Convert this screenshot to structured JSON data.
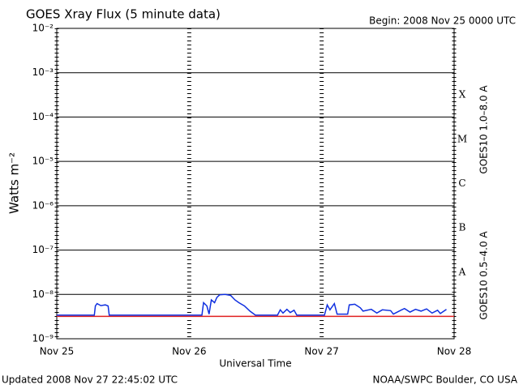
{
  "chart_data": {
    "type": "line",
    "title": "GOES Xray Flux (5 minute data)",
    "subtitle": "Begin:  2008 Nov 25 0000 UTC",
    "y_label": "Watts m⁻²",
    "x_label": "Universal Time",
    "footer_left": "Updated 2008 Nov 27 22:45:02 UTC",
    "footer_right": "NOAA/SWPC Boulder, CO USA",
    "log_scale": true,
    "grid": true,
    "xlim": [
      0,
      72
    ],
    "xticks": [
      {
        "value": 0,
        "label": "Nov 25"
      },
      {
        "value": 24,
        "label": "Nov 26"
      },
      {
        "value": 48,
        "label": "Nov 27"
      },
      {
        "value": 72,
        "label": "Nov 28"
      }
    ],
    "ylim": [
      1e-09,
      0.01
    ],
    "yticks": [
      {
        "value": 1e-09,
        "label": "10⁻⁹"
      },
      {
        "value": 1e-08,
        "label": "10⁻⁸"
      },
      {
        "value": 1e-07,
        "label": "10⁻⁷"
      },
      {
        "value": 1e-06,
        "label": "10⁻⁶"
      },
      {
        "value": 1e-05,
        "label": "10⁻⁵"
      },
      {
        "value": 0.0001,
        "label": "10⁻⁴"
      },
      {
        "value": 0.001,
        "label": "10⁻³"
      },
      {
        "value": 0.01,
        "label": "10⁻²"
      }
    ],
    "flare_classes": [
      "A",
      "B",
      "C",
      "M",
      "X"
    ],
    "series": [
      {
        "name": "GOES10 1.0–8.0 A",
        "color": "#e02020",
        "x": [
          0,
          72
        ],
        "values": [
          3.2e-09,
          3.2e-09
        ]
      },
      {
        "name": "GOES10 0.5–4.0 A",
        "color": "#1030e0",
        "x": [
          0,
          6.8,
          7.0,
          7.3,
          8,
          8.8,
          9.3,
          9.5,
          26.3,
          26.6,
          27.2,
          27.6,
          28,
          28.6,
          29,
          29.5,
          30.5,
          31.5,
          32.3,
          33,
          34,
          35,
          36,
          36.5,
          40,
          40.5,
          41,
          41.7,
          42.3,
          43,
          43.5,
          48.5,
          49,
          49.5,
          50.3,
          50.8,
          52.7,
          53,
          54,
          55,
          55.5,
          57,
          58,
          59,
          60.5,
          61,
          62.5,
          63,
          64,
          65,
          66,
          67,
          68,
          69,
          69.5,
          70.6
        ],
        "values": [
          3.4e-09,
          3.4e-09,
          5.5e-09,
          6.2e-09,
          5.6e-09,
          5.8e-09,
          5.5e-09,
          3.4e-09,
          3.4e-09,
          6.5e-09,
          5.5e-09,
          3.6e-09,
          7.5e-09,
          6.5e-09,
          8.5e-09,
          9.8e-09,
          1e-08,
          9.5e-09,
          7.5e-09,
          6.5e-09,
          5.5e-09,
          4.2e-09,
          3.4e-09,
          3.4e-09,
          3.4e-09,
          4.5e-09,
          3.8e-09,
          4.6e-09,
          3.9e-09,
          4.4e-09,
          3.4e-09,
          3.4e-09,
          5.8e-09,
          4.5e-09,
          6.2e-09,
          3.6e-09,
          3.6e-09,
          5.8e-09,
          6e-09,
          5e-09,
          4.2e-09,
          4.6e-09,
          3.8e-09,
          4.5e-09,
          4.3e-09,
          3.6e-09,
          4.5e-09,
          4.8e-09,
          4e-09,
          4.6e-09,
          4.2e-09,
          4.7e-09,
          3.8e-09,
          4.4e-09,
          3.7e-09,
          4.6e-09
        ]
      }
    ]
  }
}
